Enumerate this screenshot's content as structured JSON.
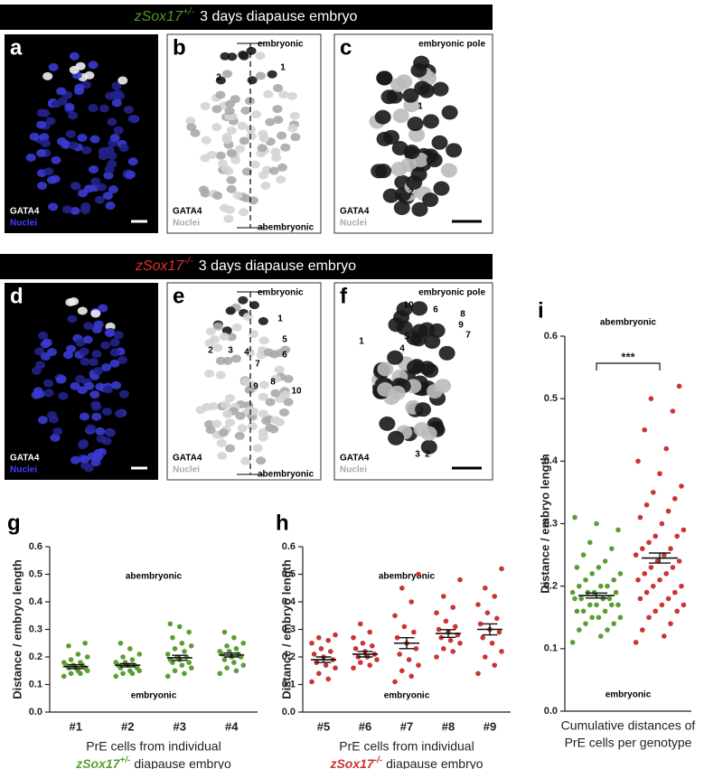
{
  "headers": [
    {
      "genotype": "zSox17",
      "superscript": "+/-",
      "text": "3 days diapause embryo"
    },
    {
      "genotype": "zSox17",
      "superscript": "-/-",
      "text": "3 days diapause embryo"
    }
  ],
  "panels": [
    {
      "letter": "a",
      "stain": "GATA4",
      "counterstain": "Nuclei"
    },
    {
      "letter": "b",
      "stain": "GATA4",
      "counterstain": "Nuclei",
      "top": "embryonic",
      "bottom": "abembryonic",
      "cells": [
        "1",
        "2"
      ]
    },
    {
      "letter": "c",
      "stain": "GATA4",
      "counterstain": "Nuclei",
      "top": "embryonic pole",
      "cells": [
        "1",
        "2"
      ]
    },
    {
      "letter": "d",
      "stain": "GATA4",
      "counterstain": "Nuclei"
    },
    {
      "letter": "e",
      "stain": "GATA4",
      "counterstain": "Nuclei",
      "top": "embryonic",
      "bottom": "abembryonic",
      "cells": [
        "1",
        "2",
        "3",
        "4",
        "5",
        "6",
        "7",
        "8",
        "9",
        "10"
      ]
    },
    {
      "letter": "f",
      "stain": "GATA4",
      "counterstain": "Nuclei",
      "top": "embryonic pole",
      "cells": [
        "10",
        "6",
        "8",
        "9",
        "7",
        "1",
        "5",
        "4",
        "3",
        "2"
      ]
    }
  ],
  "chart_data": [
    {
      "type": "scatter",
      "letter": "g",
      "ylabel": "Distance / embryo length",
      "ylim": [
        0,
        0.6
      ],
      "yticks": [
        {
          "value": 0,
          "label": "0.0"
        },
        0.1,
        0.2,
        0.3,
        0.4,
        0.5,
        0.6
      ],
      "top_label": "abembryonic",
      "bottom_label": "embryonic",
      "color": "#5a9e32",
      "categories": [
        "#1",
        "#2",
        "#3",
        "#4"
      ],
      "xlabel": [
        "PrE cells from individual"
      ],
      "xlabel_genotype": "zSox17",
      "xlabel_superscript": "+/-",
      "xlabel_rest": "diapause embryo",
      "groups": [
        {
          "values": [
            0.13,
            0.14,
            0.14,
            0.15,
            0.15,
            0.16,
            0.16,
            0.16,
            0.17,
            0.17,
            0.17,
            0.18,
            0.18,
            0.19,
            0.2,
            0.21,
            0.24,
            0.25
          ],
          "mean": 0.165,
          "sem": 0.007
        },
        {
          "values": [
            0.13,
            0.14,
            0.14,
            0.15,
            0.15,
            0.16,
            0.16,
            0.17,
            0.17,
            0.17,
            0.18,
            0.18,
            0.19,
            0.2,
            0.21,
            0.23,
            0.25
          ],
          "mean": 0.17,
          "sem": 0.006
        },
        {
          "values": [
            0.13,
            0.14,
            0.15,
            0.16,
            0.17,
            0.18,
            0.18,
            0.19,
            0.19,
            0.2,
            0.2,
            0.21,
            0.22,
            0.23,
            0.24,
            0.25,
            0.27,
            0.29,
            0.31,
            0.32
          ],
          "mean": 0.197,
          "sem": 0.009
        },
        {
          "values": [
            0.14,
            0.15,
            0.16,
            0.17,
            0.18,
            0.19,
            0.2,
            0.2,
            0.21,
            0.21,
            0.22,
            0.22,
            0.23,
            0.24,
            0.25,
            0.27,
            0.29
          ],
          "mean": 0.207,
          "sem": 0.007
        }
      ]
    },
    {
      "type": "scatter",
      "letter": "h",
      "ylabel": "Distance / embryo length",
      "ylim": [
        0,
        0.6
      ],
      "yticks": [
        {
          "value": 0,
          "label": "0.0"
        },
        0.1,
        0.2,
        0.3,
        0.4,
        0.5,
        0.6
      ],
      "top_label": "abembryonic",
      "bottom_label": "embryonic",
      "color": "#cc3333",
      "categories": [
        "#5",
        "#6",
        "#7",
        "#8",
        "#9"
      ],
      "xlabel": [
        "PrE cells from individual"
      ],
      "xlabel_genotype": "zSox17",
      "xlabel_superscript": "-/-",
      "xlabel_rest": "diapause embryo",
      "groups": [
        {
          "values": [
            0.11,
            0.12,
            0.14,
            0.16,
            0.17,
            0.18,
            0.19,
            0.2,
            0.21,
            0.22,
            0.23,
            0.25,
            0.26,
            0.27,
            0.28
          ],
          "mean": 0.19,
          "sem": 0.01
        },
        {
          "values": [
            0.16,
            0.17,
            0.18,
            0.19,
            0.2,
            0.2,
            0.21,
            0.22,
            0.23,
            0.24,
            0.25,
            0.27,
            0.29,
            0.32
          ],
          "mean": 0.21,
          "sem": 0.01
        },
        {
          "values": [
            0.11,
            0.13,
            0.15,
            0.17,
            0.19,
            0.21,
            0.23,
            0.25,
            0.27,
            0.29,
            0.31,
            0.35,
            0.4,
            0.45,
            0.5
          ],
          "mean": 0.25,
          "sem": 0.02
        },
        {
          "values": [
            0.2,
            0.22,
            0.23,
            0.25,
            0.26,
            0.27,
            0.28,
            0.29,
            0.3,
            0.31,
            0.33,
            0.36,
            0.38,
            0.42,
            0.48
          ],
          "mean": 0.285,
          "sem": 0.014
        },
        {
          "values": [
            0.14,
            0.17,
            0.2,
            0.22,
            0.25,
            0.27,
            0.29,
            0.3,
            0.32,
            0.34,
            0.36,
            0.39,
            0.42,
            0.45,
            0.52
          ],
          "mean": 0.3,
          "sem": 0.02
        }
      ]
    },
    {
      "type": "scatter",
      "letter": "i",
      "ylabel": "Distance / embryo length",
      "ylim": [
        0,
        0.6
      ],
      "yticks": [
        {
          "value": 0,
          "label": "0.0"
        },
        0.1,
        0.2,
        0.3,
        0.4,
        0.5,
        0.6
      ],
      "top_label": "abembryonic",
      "bottom_label": "embryonic",
      "significance": "***",
      "xlabel": [
        "Cumulative distances of",
        "PrE cells per genotype"
      ],
      "groups": [
        {
          "color": "#5a9e32",
          "values": [
            0.11,
            0.12,
            0.13,
            0.13,
            0.14,
            0.14,
            0.15,
            0.15,
            0.15,
            0.16,
            0.16,
            0.16,
            0.17,
            0.17,
            0.17,
            0.17,
            0.18,
            0.18,
            0.18,
            0.18,
            0.19,
            0.19,
            0.19,
            0.19,
            0.2,
            0.2,
            0.2,
            0.21,
            0.21,
            0.22,
            0.22,
            0.23,
            0.23,
            0.24,
            0.25,
            0.26,
            0.27,
            0.29,
            0.3,
            0.31
          ],
          "mean": 0.185,
          "sem": 0.004
        },
        {
          "color": "#cc3333",
          "values": [
            0.11,
            0.12,
            0.13,
            0.14,
            0.15,
            0.16,
            0.16,
            0.17,
            0.17,
            0.18,
            0.18,
            0.19,
            0.19,
            0.2,
            0.2,
            0.21,
            0.21,
            0.22,
            0.22,
            0.23,
            0.23,
            0.24,
            0.24,
            0.25,
            0.25,
            0.26,
            0.26,
            0.27,
            0.28,
            0.28,
            0.29,
            0.3,
            0.31,
            0.32,
            0.33,
            0.34,
            0.35,
            0.36,
            0.38,
            0.4,
            0.42,
            0.45,
            0.48,
            0.5,
            0.52
          ],
          "mean": 0.245,
          "sem": 0.008
        }
      ]
    }
  ]
}
